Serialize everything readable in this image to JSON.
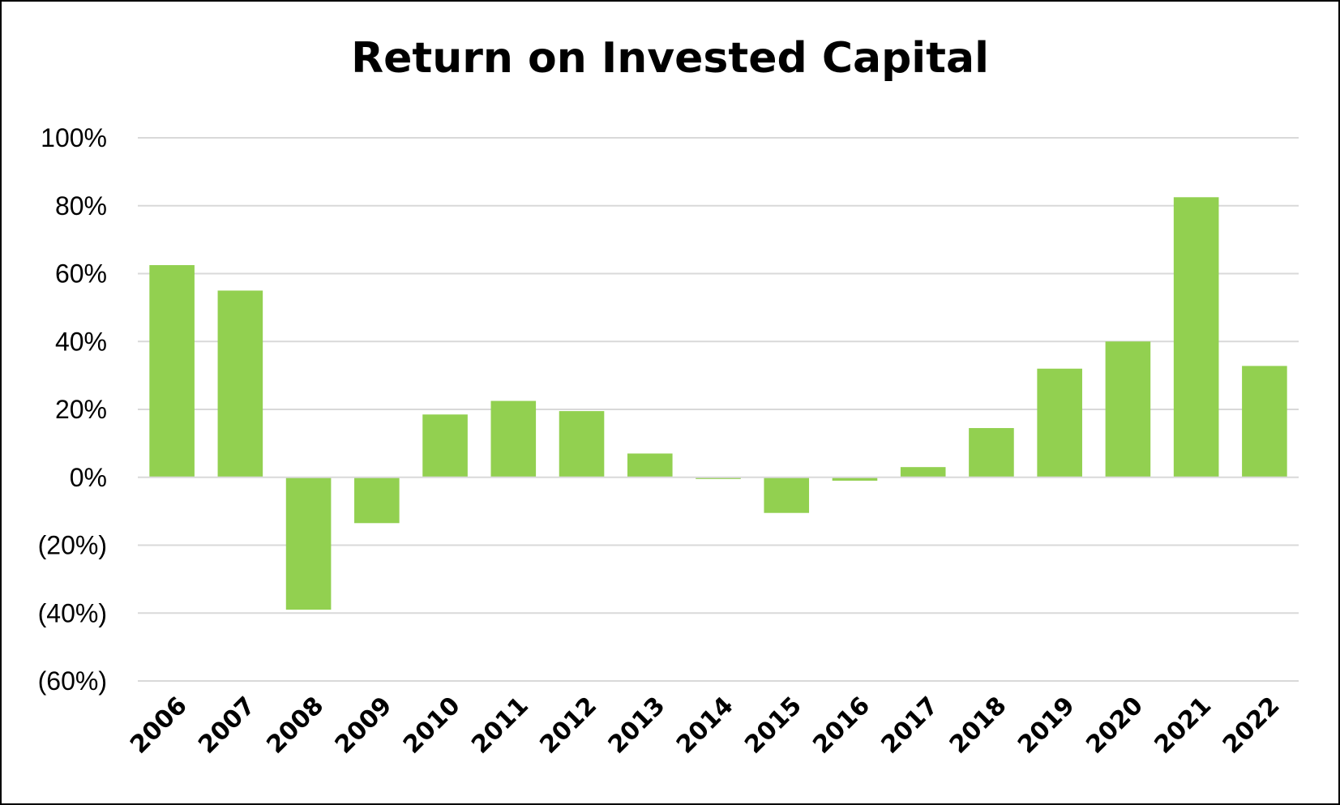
{
  "chart_data": {
    "type": "bar",
    "title": "Return on Invested Capital",
    "xlabel": "",
    "ylabel": "",
    "categories": [
      "2006",
      "2007",
      "2008",
      "2009",
      "2010",
      "2011",
      "2012",
      "2013",
      "2014",
      "2015",
      "2016",
      "2017",
      "2018",
      "2019",
      "2020",
      "2021",
      "2022"
    ],
    "values": [
      62.5,
      55,
      -39,
      -13.5,
      18.5,
      22.5,
      19.5,
      7,
      -0.5,
      -10.5,
      -1,
      3,
      14.5,
      32,
      40,
      82.5,
      32.8
    ],
    "ylim": [
      -60,
      100
    ],
    "yticks": [
      100,
      80,
      60,
      40,
      20,
      0,
      -20,
      -40,
      -60
    ],
    "ytick_labels": [
      "100%",
      "80%",
      "60%",
      "40%",
      "20%",
      "0%",
      "(20%)",
      "(40%)",
      "(60%)"
    ],
    "grid": true,
    "legend": "none",
    "bar_color": "#92d050",
    "grid_color": "#d9d9d9"
  }
}
